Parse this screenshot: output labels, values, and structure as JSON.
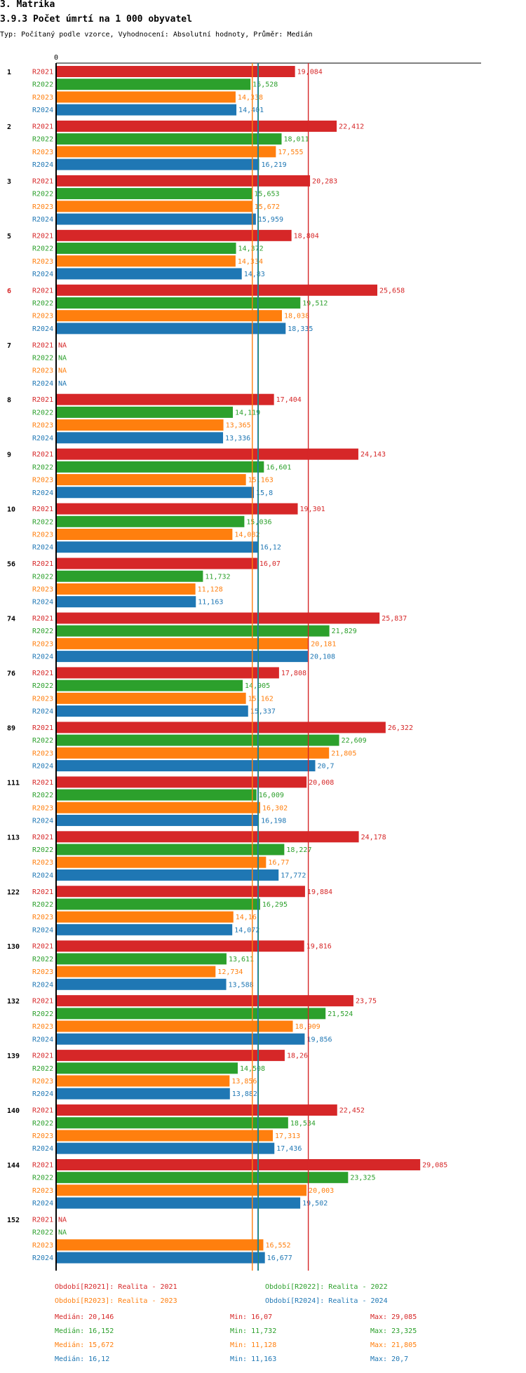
{
  "header": {
    "title": "3. Matrika",
    "subtitle": "3.9.3 Počet úmrtí na 1 000 obyvatel",
    "type_line": "Typ: Počítaný podle vzorce, Vyhodnocení: Absolutní hodnoty, Průměr: Medián"
  },
  "colors": {
    "R2021": "#d62728",
    "R2022": "#2ca02c",
    "R2023": "#ff7f0e",
    "R2024": "#1f77b4",
    "axis": "#000000",
    "highlight_group": "#d62728"
  },
  "chart_data": {
    "type": "bar",
    "orientation": "horizontal",
    "xlim": [
      0,
      38.4
    ],
    "x_axis_tick": "0",
    "series_names": [
      "R2021",
      "R2022",
      "R2023",
      "R2024"
    ],
    "groups": [
      {
        "label": "1",
        "highlight": false,
        "values": [
          19.084,
          15.528,
          14.338,
          14.401
        ],
        "labels": [
          "19,084",
          "15,528",
          "14,338",
          "14,401"
        ]
      },
      {
        "label": "2",
        "highlight": false,
        "values": [
          22.412,
          18.011,
          17.555,
          16.219
        ],
        "labels": [
          "22,412",
          "18,011",
          "17,555",
          "16,219"
        ]
      },
      {
        "label": "3",
        "highlight": false,
        "values": [
          20.283,
          15.653,
          15.672,
          15.959
        ],
        "labels": [
          "20,283",
          "15,653",
          "15,672",
          "15,959"
        ]
      },
      {
        "label": "5",
        "highlight": false,
        "values": [
          18.804,
          14.372,
          14.334,
          14.83
        ],
        "labels": [
          "18,804",
          "14,372",
          "14,334",
          "14,83"
        ]
      },
      {
        "label": "6",
        "highlight": true,
        "values": [
          25.658,
          19.512,
          18.038,
          18.335
        ],
        "labels": [
          "25,658",
          "19,512",
          "18,038",
          "18,335"
        ]
      },
      {
        "label": "7",
        "highlight": false,
        "values": [
          null,
          null,
          null,
          null
        ],
        "labels": [
          "NA",
          "NA",
          "NA",
          "NA"
        ]
      },
      {
        "label": "8",
        "highlight": false,
        "values": [
          17.404,
          14.119,
          13.365,
          13.336
        ],
        "labels": [
          "17,404",
          "14,119",
          "13,365",
          "13,336"
        ]
      },
      {
        "label": "9",
        "highlight": false,
        "values": [
          24.143,
          16.601,
          15.163,
          15.8
        ],
        "labels": [
          "24,143",
          "16,601",
          "15,163",
          "15,8"
        ]
      },
      {
        "label": "10",
        "highlight": false,
        "values": [
          19.301,
          15.036,
          14.082,
          16.12
        ],
        "labels": [
          "19,301",
          "15,036",
          "14,082",
          "16,12"
        ]
      },
      {
        "label": "56",
        "highlight": false,
        "values": [
          16.07,
          11.732,
          11.128,
          11.163
        ],
        "labels": [
          "16,07",
          "11,732",
          "11,128",
          "11,163"
        ]
      },
      {
        "label": "74",
        "highlight": false,
        "values": [
          25.837,
          21.829,
          20.181,
          20.108
        ],
        "labels": [
          "25,837",
          "21,829",
          "20,181",
          "20,108"
        ]
      },
      {
        "label": "76",
        "highlight": false,
        "values": [
          17.808,
          14.905,
          15.162,
          15.337
        ],
        "labels": [
          "17,808",
          "14,905",
          "15,162",
          "15,337"
        ]
      },
      {
        "label": "89",
        "highlight": false,
        "values": [
          26.322,
          22.609,
          21.805,
          20.7
        ],
        "labels": [
          "26,322",
          "22,609",
          "21,805",
          "20,7"
        ]
      },
      {
        "label": "111",
        "highlight": false,
        "values": [
          20.008,
          16.009,
          16.302,
          16.198
        ],
        "labels": [
          "20,008",
          "16,009",
          "16,302",
          "16,198"
        ]
      },
      {
        "label": "113",
        "highlight": false,
        "values": [
          24.178,
          18.227,
          16.77,
          17.772
        ],
        "labels": [
          "24,178",
          "18,227",
          "16,77",
          "17,772"
        ]
      },
      {
        "label": "122",
        "highlight": false,
        "values": [
          19.884,
          16.295,
          14.16,
          14.072
        ],
        "labels": [
          "19,884",
          "16,295",
          "14,16",
          "14,072"
        ]
      },
      {
        "label": "130",
        "highlight": false,
        "values": [
          19.816,
          13.611,
          12.734,
          13.588
        ],
        "labels": [
          "19,816",
          "13,611",
          "12,734",
          "13,588"
        ]
      },
      {
        "label": "132",
        "highlight": false,
        "values": [
          23.75,
          21.524,
          18.909,
          19.856
        ],
        "labels": [
          "23,75",
          "21,524",
          "18,909",
          "19,856"
        ]
      },
      {
        "label": "139",
        "highlight": false,
        "values": [
          18.26,
          14.508,
          13.856,
          13.882
        ],
        "labels": [
          "18,26",
          "14,508",
          "13,856",
          "13,882"
        ]
      },
      {
        "label": "140",
        "highlight": false,
        "values": [
          22.452,
          18.534,
          17.313,
          17.436
        ],
        "labels": [
          "22,452",
          "18,534",
          "17,313",
          "17,436"
        ]
      },
      {
        "label": "144",
        "highlight": false,
        "values": [
          29.085,
          23.325,
          20.003,
          19.502
        ],
        "labels": [
          "29,085",
          "23,325",
          "20,003",
          "19,502"
        ]
      },
      {
        "label": "152",
        "highlight": false,
        "values": [
          null,
          null,
          16.552,
          16.677
        ],
        "labels": [
          "NA",
          "NA",
          "16,552",
          "16,677"
        ]
      }
    ],
    "reference_lines": [
      {
        "series": "R2021",
        "value": 20.146
      },
      {
        "series": "R2022",
        "value": 16.152
      },
      {
        "series": "R2023",
        "value": 15.672
      },
      {
        "series": "R2024",
        "value": 16.12
      }
    ]
  },
  "legend": {
    "items": [
      {
        "series": "R2021",
        "text": "Období[R2021]: Realita - 2021"
      },
      {
        "series": "R2022",
        "text": "Období[R2022]: Realita - 2022"
      },
      {
        "series": "R2023",
        "text": "Období[R2023]: Realita - 2023"
      },
      {
        "series": "R2024",
        "text": "Období[R2024]: Realita - 2024"
      }
    ]
  },
  "stats": [
    {
      "series": "R2021",
      "median": "Medián: 20,146",
      "min": "Min: 16,07",
      "max": "Max: 29,085"
    },
    {
      "series": "R2022",
      "median": "Medián: 16,152",
      "min": "Min: 11,732",
      "max": "Max: 23,325"
    },
    {
      "series": "R2023",
      "median": "Medián: 15,672",
      "min": "Min: 11,128",
      "max": "Max: 21,805"
    },
    {
      "series": "R2024",
      "median": "Medián: 16,12",
      "min": "Min: 11,163",
      "max": "Max: 20,7"
    }
  ]
}
